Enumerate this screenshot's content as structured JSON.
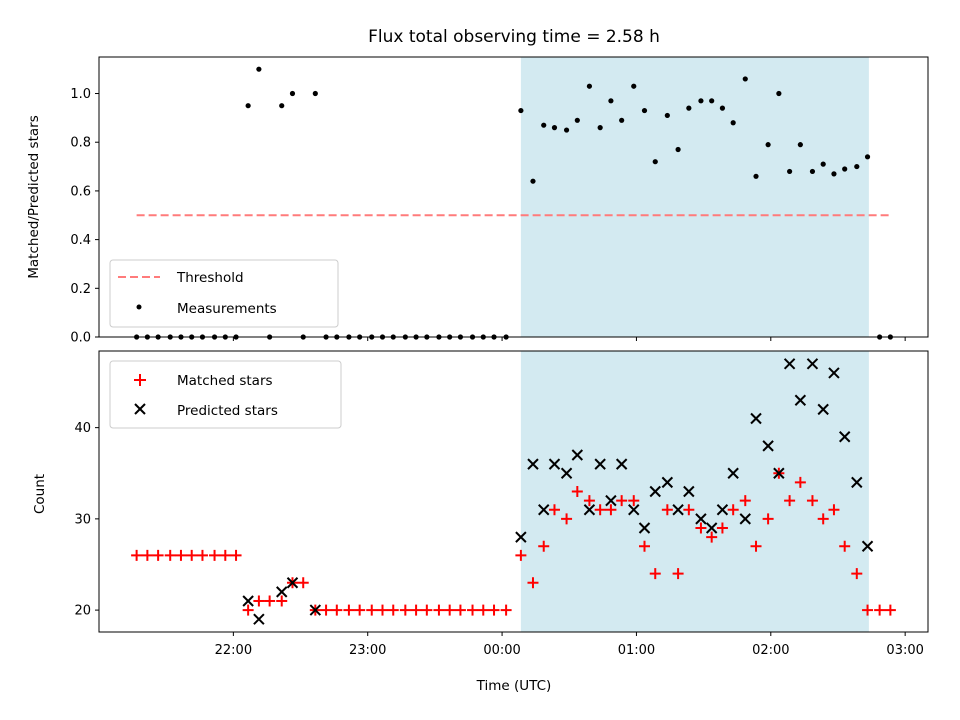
{
  "chart_data": [
    {
      "type": "scatter",
      "title": "Flux total observing time = 2.58 h",
      "xlabel": "",
      "ylabel": "Matched/Predicted stars",
      "ylim": [
        0,
        1.15
      ],
      "yticks": [
        0.0,
        0.2,
        0.4,
        0.6,
        0.8,
        1.0
      ],
      "ytick_labels": [
        "0.0",
        "0.2",
        "0.4",
        "0.6",
        "0.8",
        "1.0"
      ],
      "xlim_hours": [
        -3.0,
        3.17
      ],
      "highlight_span_hours": [
        0.14,
        2.73
      ],
      "highlight_color": "#d3eaf1",
      "legend_position": "lower left",
      "threshold": {
        "name": "Threshold",
        "value": 0.5,
        "x_from": -2.72,
        "x_to": 2.9,
        "color": "#ff7b7b",
        "style": "dashed"
      },
      "series": [
        {
          "name": "Measurements",
          "color": "#000000",
          "marker": "dot",
          "x": [
            -2.72,
            -2.64,
            -2.56,
            -2.47,
            -2.39,
            -2.31,
            -2.23,
            -2.14,
            -2.06,
            -1.98,
            -1.89,
            -1.81,
            -1.73,
            -1.64,
            -1.56,
            -1.48,
            -1.39,
            -1.31,
            -1.23,
            -1.14,
            -1.06,
            -0.97,
            -0.89,
            -0.81,
            -0.72,
            -0.64,
            -0.56,
            -0.47,
            -0.39,
            -0.31,
            -0.22,
            -0.14,
            -0.06,
            0.03,
            0.14,
            0.23,
            0.31,
            0.39,
            0.48,
            0.56,
            0.65,
            0.73,
            0.81,
            0.89,
            0.98,
            1.06,
            1.14,
            1.23,
            1.31,
            1.39,
            1.48,
            1.56,
            1.64,
            1.72,
            1.81,
            1.89,
            1.98,
            2.06,
            2.14,
            2.22,
            2.31,
            2.39,
            2.47,
            2.55,
            2.64,
            2.72,
            2.81,
            2.89
          ],
          "y": [
            0,
            0,
            0,
            0,
            0,
            0,
            0,
            0,
            0,
            0,
            0.95,
            1.1,
            0,
            0.95,
            1.0,
            0,
            1.0,
            0,
            0,
            0,
            0,
            0,
            0,
            0,
            0,
            0,
            0,
            0,
            0,
            0,
            0,
            0,
            0,
            0,
            0.93,
            0.64,
            0.87,
            0.86,
            0.85,
            0.89,
            1.03,
            0.86,
            0.97,
            0.89,
            1.03,
            0.93,
            0.72,
            0.91,
            0.77,
            0.94,
            0.97,
            0.97,
            0.94,
            0.88,
            1.06,
            0.66,
            0.79,
            1.0,
            0.68,
            0.79,
            0.68,
            0.71,
            0.67,
            0.69,
            0.7,
            0.74,
            0,
            0
          ]
        }
      ]
    },
    {
      "type": "scatter",
      "title": "",
      "xlabel": "Time (UTC)",
      "ylabel": "Count",
      "ylim": [
        17.6,
        48.4
      ],
      "yticks": [
        20,
        30,
        40
      ],
      "ytick_labels": [
        "20",
        "30",
        "40"
      ],
      "xlim_hours": [
        -3.0,
        3.17
      ],
      "xticks_hours": [
        -2,
        -1,
        0,
        1,
        2,
        3
      ],
      "xtick_labels": [
        "22:00",
        "23:00",
        "00:00",
        "01:00",
        "02:00",
        "03:00"
      ],
      "highlight_span_hours": [
        0.14,
        2.73
      ],
      "highlight_color": "#d3eaf1",
      "legend_position": "upper left",
      "series": [
        {
          "name": "Matched stars",
          "color": "#ff0000",
          "marker": "plus",
          "x": [
            -2.72,
            -2.64,
            -2.56,
            -2.47,
            -2.39,
            -2.31,
            -2.23,
            -2.14,
            -2.06,
            -1.98,
            -1.89,
            -1.81,
            -1.73,
            -1.64,
            -1.56,
            -1.48,
            -1.39,
            -1.31,
            -1.23,
            -1.14,
            -1.06,
            -0.97,
            -0.89,
            -0.81,
            -0.72,
            -0.64,
            -0.56,
            -0.47,
            -0.39,
            -0.31,
            -0.22,
            -0.14,
            -0.06,
            0.03,
            0.14,
            0.23,
            0.31,
            0.39,
            0.48,
            0.56,
            0.65,
            0.73,
            0.81,
            0.89,
            0.98,
            1.06,
            1.14,
            1.23,
            1.31,
            1.39,
            1.48,
            1.56,
            1.64,
            1.72,
            1.81,
            1.89,
            1.98,
            2.06,
            2.14,
            2.22,
            2.31,
            2.39,
            2.47,
            2.55,
            2.64,
            2.72,
            2.81,
            2.89
          ],
          "y": [
            26,
            26,
            26,
            26,
            26,
            26,
            26,
            26,
            26,
            26,
            20,
            21,
            21,
            21,
            23,
            23,
            20,
            20,
            20,
            20,
            20,
            20,
            20,
            20,
            20,
            20,
            20,
            20,
            20,
            20,
            20,
            20,
            20,
            20,
            26,
            23,
            27,
            31,
            30,
            33,
            32,
            31,
            31,
            32,
            32,
            27,
            24,
            31,
            24,
            31,
            29,
            28,
            29,
            31,
            32,
            27,
            30,
            35,
            32,
            34,
            32,
            30,
            31,
            27,
            24,
            20,
            20,
            20
          ]
        },
        {
          "name": "Predicted stars",
          "color": "#000000",
          "marker": "x",
          "x": [
            -1.89,
            -1.81,
            -1.64,
            -1.56,
            -1.39,
            0.14,
            0.23,
            0.31,
            0.39,
            0.48,
            0.56,
            0.65,
            0.73,
            0.81,
            0.89,
            0.98,
            1.06,
            1.14,
            1.23,
            1.31,
            1.39,
            1.48,
            1.56,
            1.64,
            1.72,
            1.81,
            1.89,
            1.98,
            2.06,
            2.14,
            2.22,
            2.31,
            2.39,
            2.47,
            2.55,
            2.64,
            2.72
          ],
          "y": [
            21,
            19,
            22,
            23,
            20,
            28,
            36,
            31,
            36,
            35,
            37,
            31,
            36,
            32,
            36,
            31,
            29,
            33,
            34,
            31,
            33,
            30,
            29,
            31,
            35,
            30,
            41,
            38,
            35,
            47,
            43,
            47,
            42,
            46,
            39,
            34,
            27
          ]
        }
      ]
    }
  ]
}
